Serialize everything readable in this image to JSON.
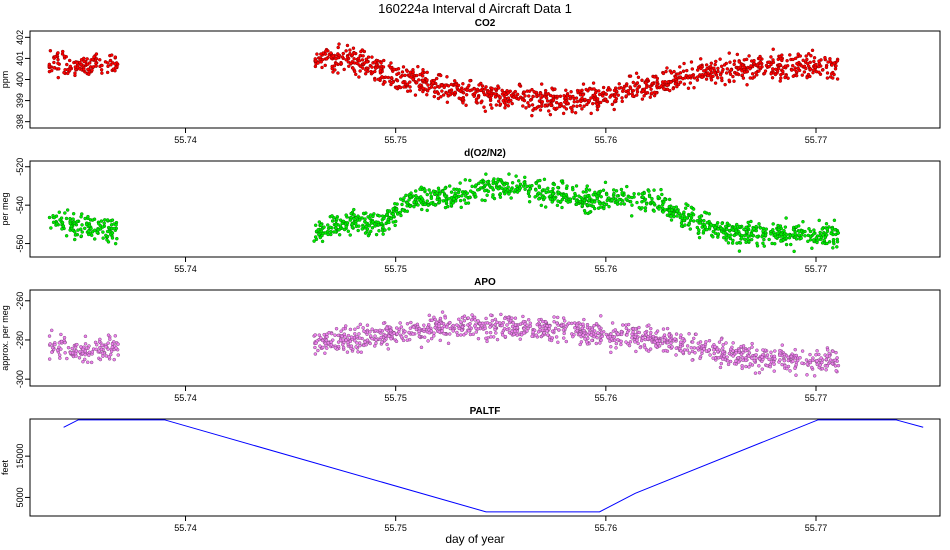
{
  "figure": {
    "title": "160224a   Interval d Aircraft Data 1",
    "xlabel": "day of year"
  },
  "chart_data": [
    {
      "type": "scatter",
      "title": "CO2",
      "ylabel": "ppm",
      "color": "#ff0000",
      "xlim": [
        55.7326,
        55.7759
      ],
      "ylim": [
        397.7,
        402.3
      ],
      "x_ticks": [
        55.74,
        55.75,
        55.76,
        55.77
      ],
      "x_tick_labels": [
        "55.74",
        "55.75",
        "55.76",
        "55.77"
      ],
      "y_ticks": [
        398,
        399,
        400,
        401,
        402
      ],
      "y_tick_labels": [
        "398",
        "399",
        "400",
        "401",
        "402"
      ],
      "segments": [
        {
          "x_range": [
            55.7335,
            55.7368
          ],
          "trend": [
            [
              55.7335,
              400.8
            ],
            [
              55.735,
              400.6
            ],
            [
              55.7368,
              400.9
            ]
          ],
          "spread": 0.55,
          "n": 130
        },
        {
          "x_range": [
            55.7461,
            55.7711
          ],
          "trend": [
            [
              55.7461,
              401.0
            ],
            [
              55.748,
              400.9
            ],
            [
              55.75,
              400.2
            ],
            [
              55.752,
              399.6
            ],
            [
              55.754,
              399.2
            ],
            [
              55.756,
              399.1
            ],
            [
              55.758,
              399.0
            ],
            [
              55.76,
              399.2
            ],
            [
              55.762,
              399.6
            ],
            [
              55.764,
              400.2
            ],
            [
              55.766,
              400.5
            ],
            [
              55.768,
              400.6
            ],
            [
              55.77,
              400.6
            ],
            [
              55.7711,
              400.5
            ]
          ],
          "spread": 0.6,
          "n": 1100
        }
      ]
    },
    {
      "type": "scatter",
      "title": "d(O2/N2)",
      "ylabel": "per meg",
      "color": "#00ee00",
      "xlim": [
        55.7326,
        55.7759
      ],
      "ylim": [
        -567,
        -517
      ],
      "x_ticks": [
        55.74,
        55.75,
        55.76,
        55.77
      ],
      "x_tick_labels": [
        "55.74",
        "55.75",
        "55.76",
        "55.77"
      ],
      "y_ticks": [
        -560,
        -540,
        -520
      ],
      "y_tick_labels": [
        "-560",
        "-540",
        "-520"
      ],
      "segments": [
        {
          "x_range": [
            55.7335,
            55.7368
          ],
          "trend": [
            [
              55.7335,
              -548
            ],
            [
              55.735,
              -552
            ],
            [
              55.7368,
              -553
            ]
          ],
          "spread": 6,
          "n": 130
        },
        {
          "x_range": [
            55.7461,
            55.7711
          ],
          "trend": [
            [
              55.7461,
              -556
            ],
            [
              55.748,
              -548
            ],
            [
              55.7495,
              -550
            ],
            [
              55.7505,
              -538
            ],
            [
              55.753,
              -535
            ],
            [
              55.755,
              -530
            ],
            [
              55.757,
              -533
            ],
            [
              55.759,
              -537
            ],
            [
              55.761,
              -536
            ],
            [
              55.7625,
              -538
            ],
            [
              55.764,
              -548
            ],
            [
              55.766,
              -555
            ],
            [
              55.768,
              -554
            ],
            [
              55.77,
              -556
            ],
            [
              55.7711,
              -555
            ]
          ],
          "spread": 6,
          "n": 1100
        }
      ]
    },
    {
      "type": "scatter",
      "title": "APO",
      "ylabel": "approx. per meg",
      "color": "#ee82ee",
      "xlim": [
        55.7326,
        55.7759
      ],
      "ylim": [
        -303.5,
        -254.5
      ],
      "x_ticks": [
        55.74,
        55.75,
        55.76,
        55.77
      ],
      "x_tick_labels": [
        "55.74",
        "55.75",
        "55.76",
        "55.77"
      ],
      "y_ticks": [
        -300,
        -280,
        -260
      ],
      "y_tick_labels": [
        "-300",
        "-280",
        "-260"
      ],
      "segments": [
        {
          "x_range": [
            55.7335,
            55.7368
          ],
          "trend": [
            [
              55.7335,
              -282
            ],
            [
              55.735,
              -286
            ],
            [
              55.7368,
              -284
            ]
          ],
          "spread": 6,
          "n": 130
        },
        {
          "x_range": [
            55.7461,
            55.7711
          ],
          "trend": [
            [
              55.7461,
              -283
            ],
            [
              55.748,
              -280
            ],
            [
              55.75,
              -277
            ],
            [
              55.752,
              -274
            ],
            [
              55.754,
              -273
            ],
            [
              55.756,
              -274
            ],
            [
              55.758,
              -275
            ],
            [
              55.76,
              -277
            ],
            [
              55.762,
              -279
            ],
            [
              55.764,
              -283
            ],
            [
              55.766,
              -288
            ],
            [
              55.768,
              -290
            ],
            [
              55.77,
              -291
            ],
            [
              55.7711,
              -290
            ]
          ],
          "spread": 6,
          "n": 1100
        }
      ]
    },
    {
      "type": "line",
      "title": "PALTF",
      "ylabel": "feet",
      "color": "#0000ff",
      "xlim": [
        55.7326,
        55.7759
      ],
      "ylim": [
        500,
        24000
      ],
      "x_ticks": [
        55.74,
        55.75,
        55.76,
        55.77
      ],
      "x_tick_labels": [
        "55.74",
        "55.75",
        "55.76",
        "55.77"
      ],
      "y_ticks": [
        5000,
        15000
      ],
      "y_tick_labels": [
        "5000",
        "15000"
      ],
      "x": [
        55.7342,
        55.7349,
        55.739,
        55.7543,
        55.7597,
        55.7614,
        55.7701,
        55.7738,
        55.7751
      ],
      "y": [
        22000,
        23800,
        23800,
        1500,
        1500,
        6000,
        23800,
        23800,
        22000
      ]
    }
  ]
}
